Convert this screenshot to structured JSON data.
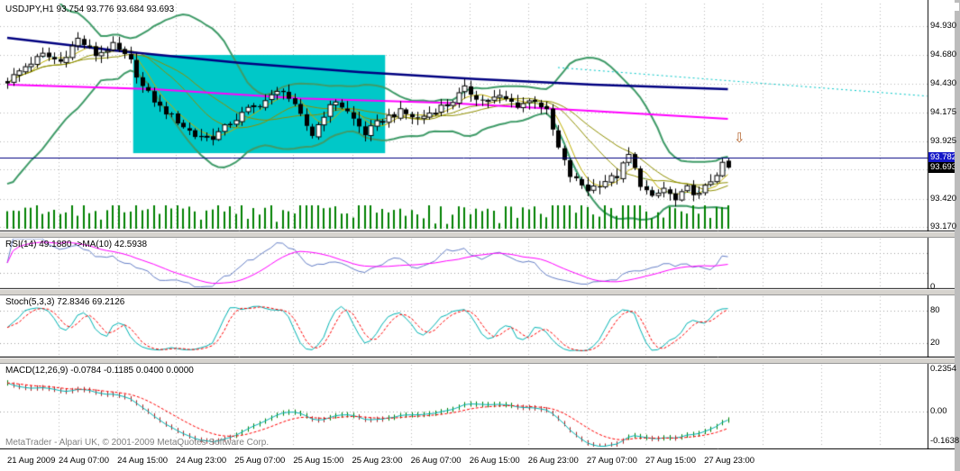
{
  "main": {
    "title": "USDJPY,H1 93.754 93.776 93.684 93.693",
    "footer": "MetaTrader - Alpari UK, © 2001-2009 MetaQuotes Software Corp.",
    "bid": "93.782",
    "last": "93.693"
  },
  "icons": {
    "down_arrow": "⇩"
  },
  "price_axis": [
    "94.930",
    "94.680",
    "94.430",
    "94.175",
    "93.925",
    "93.420",
    "93.170"
  ],
  "time_axis": [
    "21 Aug 2009",
    "24 Aug 07:00",
    "24 Aug 15:00",
    "24 Aug 23:00",
    "25 Aug 07:00",
    "25 Aug 15:00",
    "25 Aug 23:00",
    "26 Aug 07:00",
    "26 Aug 15:00",
    "26 Aug 23:00",
    "27 Aug 07:00",
    "27 Aug 15:00",
    "27 Aug 23:00"
  ],
  "indicators": {
    "rsi": {
      "label": "RSI(14) 49.1880 ->MA(10) 42.5938",
      "axis": [
        "0"
      ],
      "levels": [
        70,
        30
      ],
      "value": 49.188,
      "ma_value": 42.5938,
      "range": [
        0,
        100
      ]
    },
    "stoch": {
      "label": "Stoch(5,3,3) 72.8346 69.2126",
      "axis": [
        "80",
        "20"
      ],
      "levels": [
        80,
        20
      ],
      "values": [
        72.8346,
        69.2126
      ],
      "range": [
        0,
        100
      ]
    },
    "macd": {
      "label": "MACD(12,26,9) -0.0784 -0.1185 0.0400 0.0000",
      "axis": [
        "0.2354",
        "0.00",
        "-0.1638"
      ],
      "values": [
        -0.0784,
        -0.1185,
        0.04,
        0.0
      ],
      "range": [
        -0.1638,
        0.2354
      ]
    }
  },
  "chart_data": {
    "type": "candlestick",
    "symbol": "USDJPY",
    "timeframe": "H1",
    "bars": 124,
    "price_range": [
      93.15,
      95.13
    ],
    "grid_prices": [
      94.93,
      94.68,
      94.43,
      94.175,
      93.925,
      93.675,
      93.42,
      93.17
    ],
    "last_candle": {
      "open": 93.754,
      "high": 93.776,
      "low": 93.684,
      "close": 93.693
    },
    "bid_price": 93.782,
    "close_path_anchors": [
      [
        0,
        94.45
      ],
      [
        3,
        94.58
      ],
      [
        6,
        94.68
      ],
      [
        9,
        94.62
      ],
      [
        12,
        94.82
      ],
      [
        15,
        94.68
      ],
      [
        18,
        94.76
      ],
      [
        21,
        94.62
      ],
      [
        23,
        94.4
      ],
      [
        26,
        94.22
      ],
      [
        29,
        94.1
      ],
      [
        32,
        93.97
      ],
      [
        35,
        93.96
      ],
      [
        38,
        94.08
      ],
      [
        41,
        94.2
      ],
      [
        44,
        94.28
      ],
      [
        47,
        94.38
      ],
      [
        49,
        94.22
      ],
      [
        52,
        93.98
      ],
      [
        54,
        94.16
      ],
      [
        56,
        94.28
      ],
      [
        58,
        94.18
      ],
      [
        61,
        93.99
      ],
      [
        64,
        94.12
      ],
      [
        67,
        94.18
      ],
      [
        70,
        94.12
      ],
      [
        73,
        94.2
      ],
      [
        76,
        94.28
      ],
      [
        78,
        94.38
      ],
      [
        81,
        94.28
      ],
      [
        84,
        94.31
      ],
      [
        87,
        94.24
      ],
      [
        90,
        94.29
      ],
      [
        92,
        94.18
      ],
      [
        94,
        93.86
      ],
      [
        96,
        93.62
      ],
      [
        99,
        93.5
      ],
      [
        102,
        93.58
      ],
      [
        104,
        93.62
      ],
      [
        106,
        93.8
      ],
      [
        108,
        93.55
      ],
      [
        110,
        93.42
      ],
      [
        112,
        93.51
      ],
      [
        114,
        93.4
      ],
      [
        116,
        93.51
      ],
      [
        118,
        93.45
      ],
      [
        120,
        93.58
      ],
      [
        122,
        93.71
      ],
      [
        123,
        93.693
      ]
    ],
    "ma_slow_anchors": [
      [
        0,
        94.83
      ],
      [
        20,
        94.71
      ],
      [
        40,
        94.61
      ],
      [
        60,
        94.53
      ],
      [
        80,
        94.47
      ],
      [
        100,
        94.42
      ],
      [
        123,
        94.38
      ]
    ],
    "ma_medium_anchors": [
      [
        0,
        94.42
      ],
      [
        25,
        94.38
      ],
      [
        50,
        94.3
      ],
      [
        75,
        94.26
      ],
      [
        100,
        94.19
      ],
      [
        123,
        94.12
      ]
    ],
    "bollinger": {
      "period": 20,
      "deviation": 2
    },
    "fast_sma_periods": [
      5,
      13
    ],
    "highlight_rect": {
      "bar_start": 21.5,
      "bar_end": 64.5,
      "price_top": 94.68,
      "price_bottom": 93.82
    },
    "hline_price": 93.782,
    "arrow": {
      "bar": 125.2,
      "price": 93.92
    },
    "dotted_trendline": {
      "from": {
        "bar": 94,
        "price": 94.57
      },
      "to": {
        "bar": 157,
        "price": 94.32
      }
    }
  },
  "colors": {
    "background": "#ffffff",
    "grid": "#b8b8b8",
    "border": "#000000",
    "candle_up_fill": "#ffffff",
    "candle_down_fill": "#000000",
    "candle_border": "#000000",
    "bollinger_band": "#3f9b68",
    "ma_slow": "#000080",
    "ma_medium": "#ff00ff",
    "ma_fast": "#c0b000",
    "ma_fast2": "#909000",
    "highlight_rect": "#00c8c8",
    "hline": "#000080",
    "volume": "#008000",
    "dotted": "#00c8c8",
    "arrow": "#b4642d",
    "bid_tag_bg": "#1417c8",
    "last_tag_bg": "#000000",
    "rsi_line": "#6680c8",
    "rsi_ma": "#ff00ff",
    "stoch_main": "#00b4b4",
    "stoch_signal": "#ff0000",
    "macd_main": "#00b4b4",
    "macd_signal": "#ff0000",
    "hist_up": "#008000",
    "hist_down": "#aa2222",
    "separator": "#d6d3ce",
    "footer_text": "#808080"
  }
}
